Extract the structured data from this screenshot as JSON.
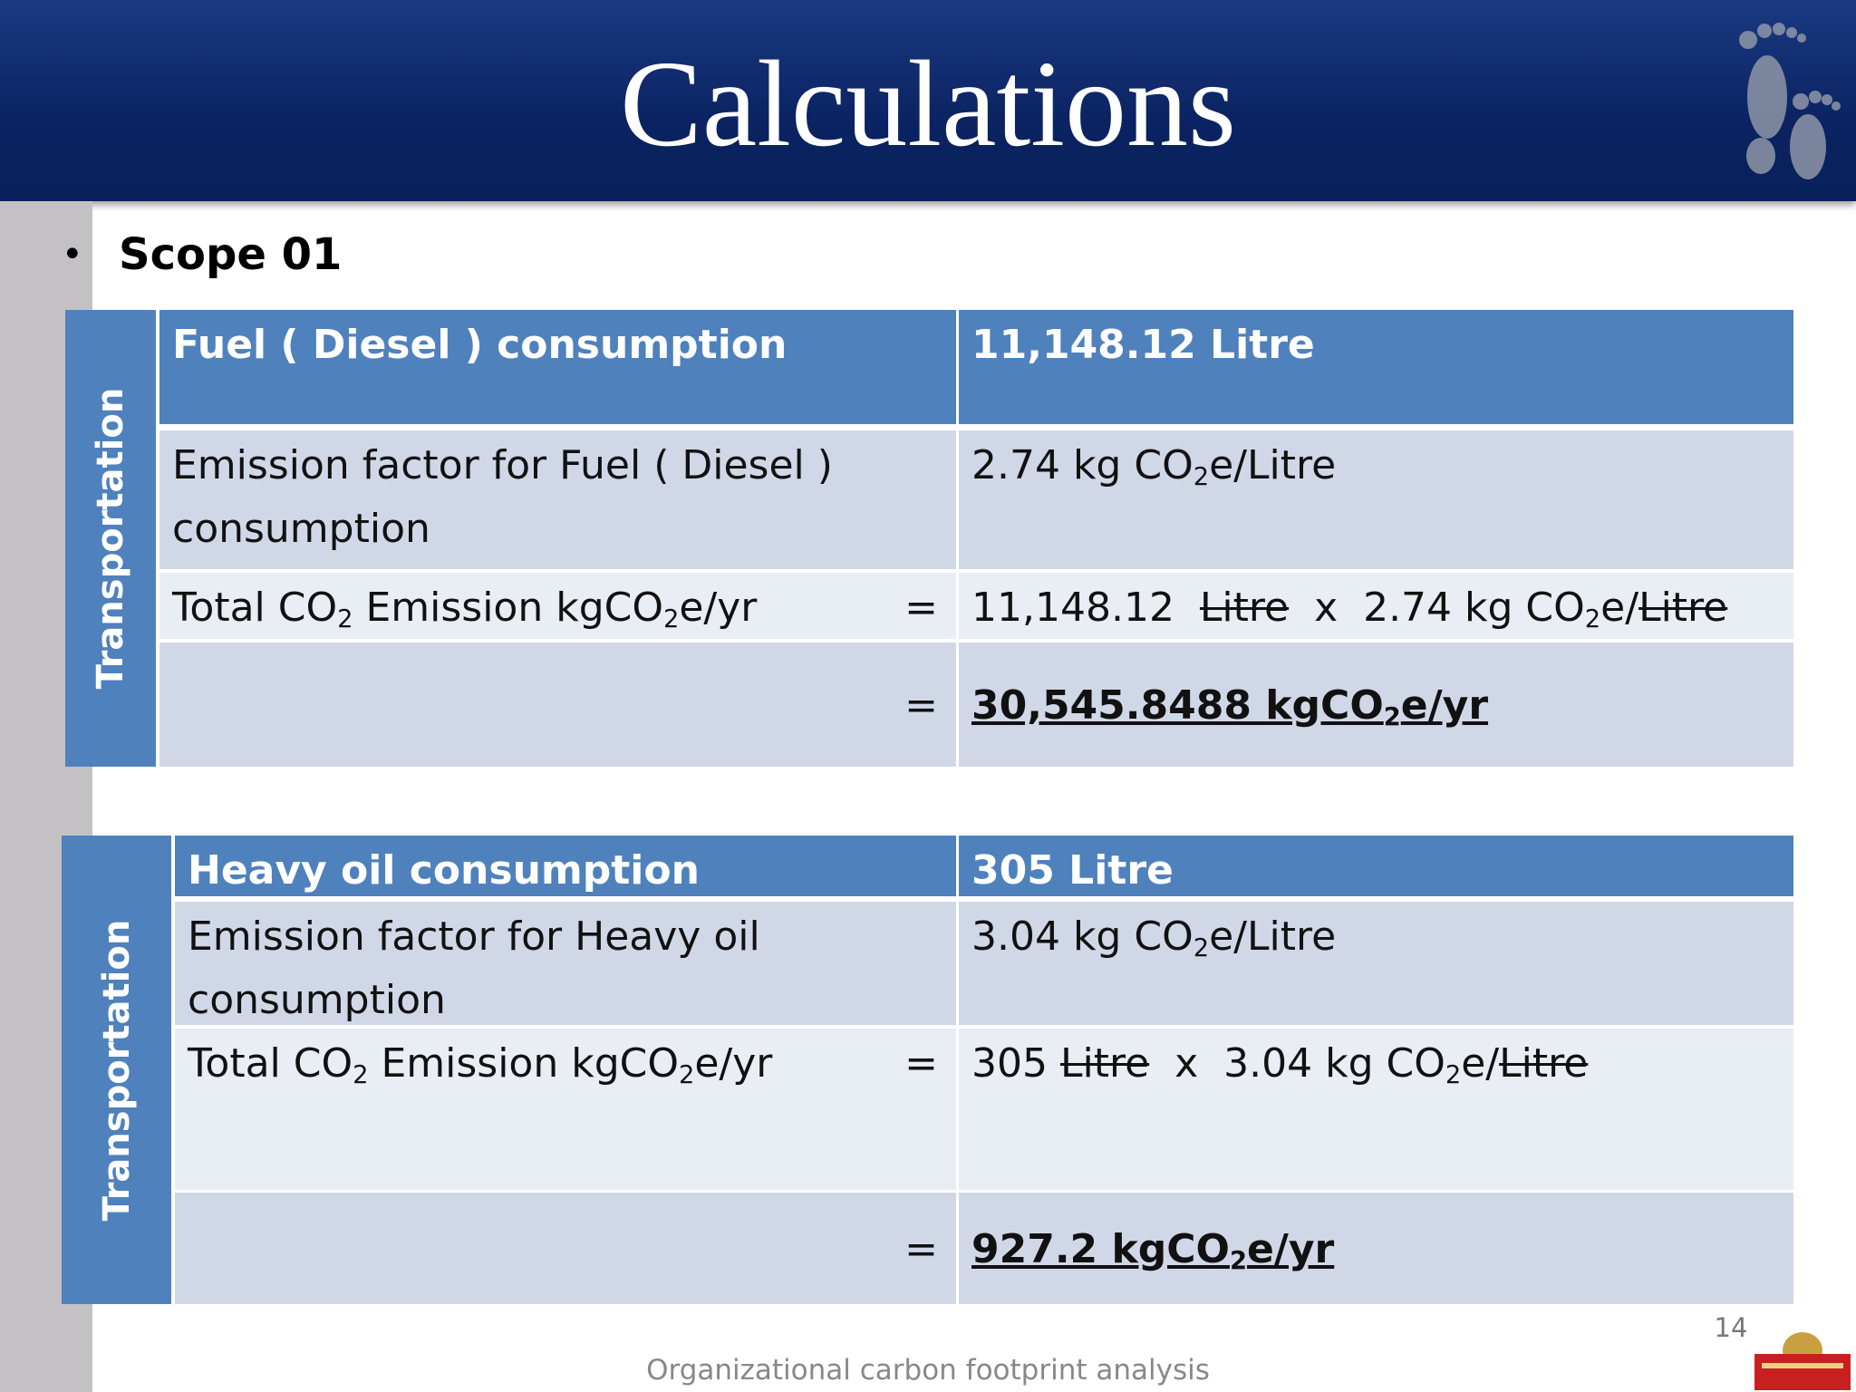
{
  "header": {
    "title": "Calculations"
  },
  "bullet": "Scope 01",
  "tables": [
    {
      "side_label": "Transportation",
      "rows": [
        {
          "label": [
            {
              "text": "Fuel ( Diesel ) consumption"
            }
          ],
          "value": [
            {
              "text": "11,148.12 Litre"
            }
          ]
        },
        {
          "label": [
            {
              "text": "Emission factor for Fuel ( Diesel ) consumption"
            }
          ],
          "value": [
            {
              "text": "2.74 kg CO"
            },
            {
              "sub": "2"
            },
            {
              "text": "e/Litre"
            }
          ]
        },
        {
          "label": [
            {
              "text": "Total CO"
            },
            {
              "sub": "2"
            },
            {
              "text": " Emission kgCO"
            },
            {
              "sub": "2"
            },
            {
              "text": "e/yr"
            }
          ],
          "equals": "=",
          "value": [
            {
              "text": "11,148.12  "
            },
            {
              "strike": "Litre"
            },
            {
              "text": "  x  2.74 kg CO"
            },
            {
              "sub": "2"
            },
            {
              "text": "e/"
            },
            {
              "strike": "Litre"
            }
          ]
        },
        {
          "label": [],
          "equals": "=",
          "value": [
            {
              "text": "30,545.8488 kgCO"
            },
            {
              "sub": "2"
            },
            {
              "text": "e/yr"
            }
          ]
        }
      ]
    },
    {
      "side_label": "Transportation",
      "rows": [
        {
          "label": [
            {
              "text": "Heavy oil consumption"
            }
          ],
          "value": [
            {
              "text": "305 Litre"
            }
          ]
        },
        {
          "label": [
            {
              "text": "Emission factor for Heavy oil consumption"
            }
          ],
          "value": [
            {
              "text": "3.04 kg CO"
            },
            {
              "sub": "2"
            },
            {
              "text": "e/Litre"
            }
          ]
        },
        {
          "label": [
            {
              "text": "Total CO"
            },
            {
              "sub": "2"
            },
            {
              "text": " Emission kgCO"
            },
            {
              "sub": "2"
            },
            {
              "text": "e/yr"
            }
          ],
          "equals": "=",
          "value": [
            {
              "text": "305 "
            },
            {
              "strike": "Litre"
            },
            {
              "text": "  x  3.04 kg CO"
            },
            {
              "sub": "2"
            },
            {
              "text": "e/"
            },
            {
              "strike": "Litre"
            }
          ]
        },
        {
          "label": [],
          "equals": "=",
          "value": [
            {
              "text": "927.2 kgCO"
            },
            {
              "sub": "2"
            },
            {
              "text": "e/yr"
            }
          ]
        }
      ]
    }
  ],
  "footer": {
    "page_number": "14",
    "caption": "Organizational carbon footprint analysis"
  }
}
